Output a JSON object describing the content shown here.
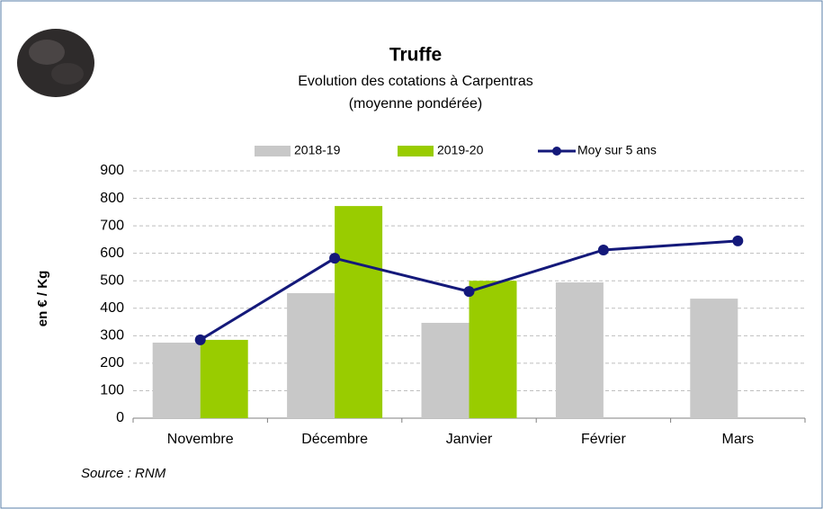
{
  "chart_data": {
    "type": "bar_line",
    "title": "Truffe",
    "subtitle": "Evolution des cotations à Carpentras",
    "subtitle2": "(moyenne pondérée)",
    "y_label": "en € / Kg",
    "source": "Source : RNM",
    "categories": [
      "Novembre",
      "Décembre",
      "Janvier",
      "Février",
      "Mars"
    ],
    "series": [
      {
        "name": "2018-19",
        "type": "bar",
        "color": "#c8c8c8",
        "values": [
          275,
          455,
          347,
          494,
          435
        ]
      },
      {
        "name": "2019-20",
        "type": "bar",
        "color": "#99cc00",
        "values": [
          285,
          772,
          500,
          null,
          null
        ]
      },
      {
        "name": "Moy sur 5 ans",
        "type": "line",
        "color": "#14197a",
        "values": [
          285,
          582,
          461,
          612,
          645
        ]
      }
    ],
    "ylim": [
      0,
      900
    ],
    "yticks": [
      0,
      100,
      200,
      300,
      400,
      500,
      600,
      700,
      800,
      900
    ],
    "grid": true
  }
}
